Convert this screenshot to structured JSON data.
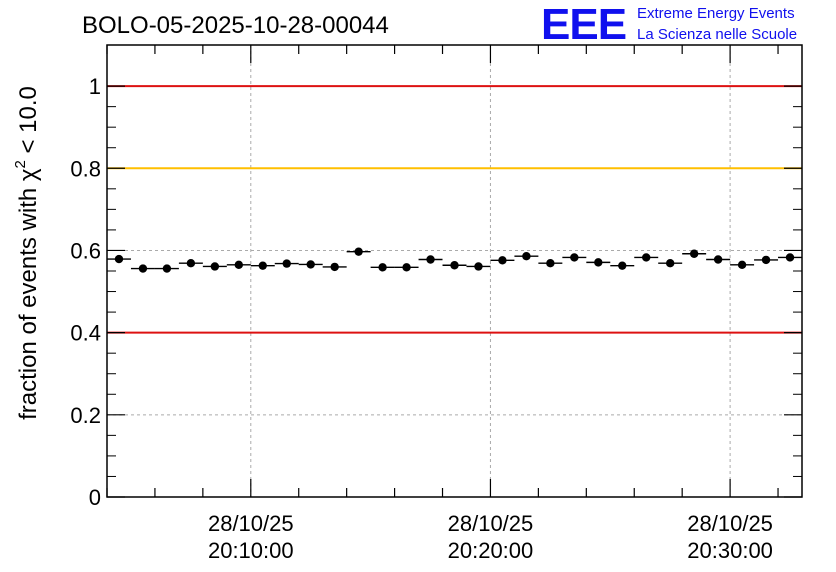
{
  "title": "BOLO-05-2025-10-28-00044",
  "logo": {
    "mark": "EEE",
    "line1": "Extreme Energy Events",
    "line2": "La Scienza nelle Scuole",
    "color": "#1010ee"
  },
  "chart_data": {
    "type": "scatter",
    "title": "BOLO-05-2025-10-28-00044",
    "xlabel": "",
    "ylabel": {
      "main": "fraction of events with χ",
      "superscript": "2",
      "suffix": " < 10.0"
    },
    "ylim": [
      0,
      1.1
    ],
    "xlim_minutes": [
      0,
      29
    ],
    "yticks": [
      0,
      0.2,
      0.4,
      0.6,
      0.8,
      1
    ],
    "ytick_labels": [
      "0",
      "0.2",
      "0.4",
      "0.6",
      "0.8",
      "1"
    ],
    "xticks": [
      {
        "minute": 6,
        "date": "28/10/25",
        "time": "20:10:00"
      },
      {
        "minute": 16,
        "date": "28/10/25",
        "time": "20:20:00"
      },
      {
        "minute": 26,
        "date": "28/10/25",
        "time": "20:30:00"
      }
    ],
    "grid": true,
    "reference_lines": [
      {
        "y": 1.0,
        "color": "#dd1111"
      },
      {
        "y": 0.8,
        "color": "#ffbf00"
      },
      {
        "y": 0.4,
        "color": "#dd1111"
      }
    ],
    "point_color": "#000000",
    "series": [
      {
        "name": "fraction",
        "x_bin_width_minutes": 1,
        "x_centers_minutes": [
          0.5,
          1.5,
          2.5,
          3.5,
          4.5,
          5.5,
          6.5,
          7.5,
          8.5,
          9.5,
          10.5,
          11.5,
          12.5,
          13.5,
          14.5,
          15.5,
          16.5,
          17.5,
          18.5,
          19.5,
          20.5,
          21.5,
          22.5,
          23.5,
          24.5,
          25.5,
          26.5,
          27.5,
          28.5
        ],
        "values": [
          0.579,
          0.556,
          0.556,
          0.569,
          0.561,
          0.565,
          0.563,
          0.568,
          0.566,
          0.56,
          0.597,
          0.559,
          0.559,
          0.578,
          0.564,
          0.561,
          0.576,
          0.586,
          0.569,
          0.583,
          0.571,
          0.563,
          0.583,
          0.569,
          0.592,
          0.578,
          0.565,
          0.577,
          0.583
        ],
        "errors": [
          0.009,
          0.008,
          0.008,
          0.008,
          0.008,
          0.008,
          0.008,
          0.008,
          0.008,
          0.008,
          0.008,
          0.008,
          0.008,
          0.008,
          0.008,
          0.008,
          0.008,
          0.008,
          0.008,
          0.008,
          0.008,
          0.008,
          0.008,
          0.008,
          0.008,
          0.008,
          0.008,
          0.008,
          0.008
        ]
      }
    ]
  }
}
